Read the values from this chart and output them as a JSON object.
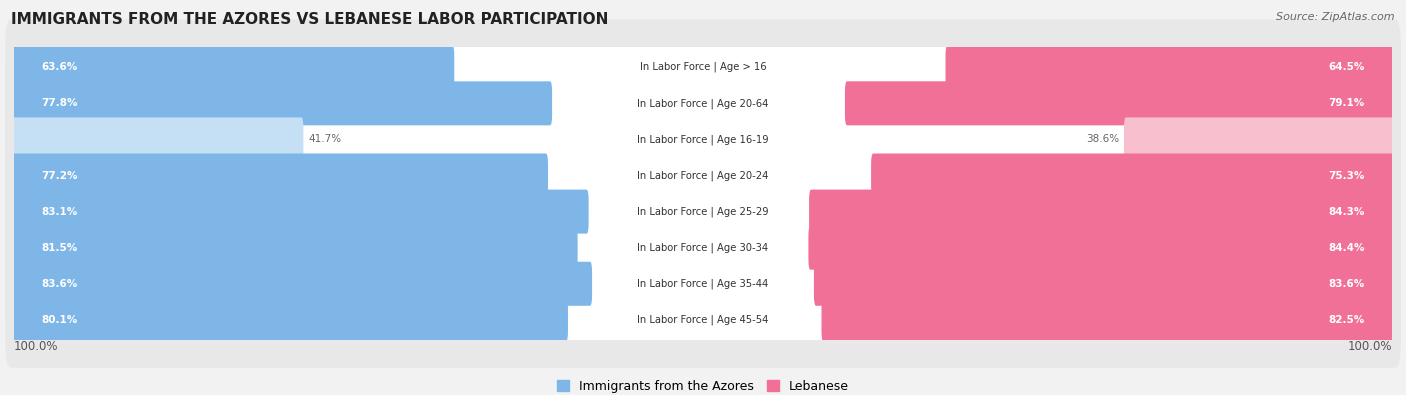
{
  "title": "IMMIGRANTS FROM THE AZORES VS LEBANESE LABOR PARTICIPATION",
  "source": "Source: ZipAtlas.com",
  "categories": [
    "In Labor Force | Age > 16",
    "In Labor Force | Age 20-64",
    "In Labor Force | Age 16-19",
    "In Labor Force | Age 20-24",
    "In Labor Force | Age 25-29",
    "In Labor Force | Age 30-34",
    "In Labor Force | Age 35-44",
    "In Labor Force | Age 45-54"
  ],
  "azores_values": [
    63.6,
    77.8,
    41.7,
    77.2,
    83.1,
    81.5,
    83.6,
    80.1
  ],
  "lebanese_values": [
    64.5,
    79.1,
    38.6,
    75.3,
    84.3,
    84.4,
    83.6,
    82.5
  ],
  "azores_color": "#7EB6E8",
  "azores_color_light": "#C5DFF5",
  "lebanese_color": "#F07098",
  "lebanese_color_light": "#F8C0CF",
  "bg_color": "#F2F2F2",
  "row_bg_color": "#FFFFFF",
  "outer_bg_color": "#E8E8E8",
  "max_value": 100.0,
  "legend_azores": "Immigrants from the Azores",
  "legend_lebanese": "Lebanese",
  "low_threshold": 55
}
